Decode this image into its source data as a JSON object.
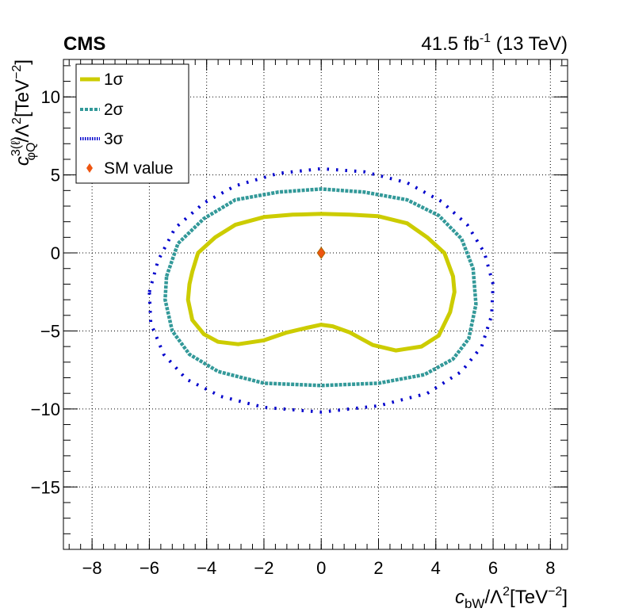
{
  "header": {
    "experiment": "CMS",
    "lumi_value": "41.5 fb",
    "lumi_exp": "-1",
    "lumi_energy": " (13 TeV)"
  },
  "axes": {
    "x_main": "c",
    "x_sub": "bW",
    "x_rest": "/Λ",
    "x_pow": "2",
    "x_unit": "[TeV",
    "x_unit_pow": "−2",
    "x_close": "]",
    "y_main": "c",
    "y_sup": "3(ℓ)",
    "y_sub": "φQ",
    "y_rest": "/Λ",
    "y_pow": "2",
    "y_unit": "[TeV",
    "y_unit_pow": "−2",
    "y_close": "]"
  },
  "legend": {
    "placement": "top-left",
    "entries": [
      {
        "label": "1σ",
        "color": "#cccc00",
        "style": "solid"
      },
      {
        "label": "2σ",
        "color": "#339999",
        "style": "dashed"
      },
      {
        "label": "3σ",
        "color": "#0000cc",
        "style": "dotted"
      },
      {
        "label": "SM value",
        "color": "#ee5511",
        "style": "marker"
      }
    ]
  },
  "chart_data": {
    "type": "scatter",
    "title": "",
    "xlabel": "c_bW/Λ^2[TeV^-2]",
    "ylabel": "c_φQ^3(ℓ)/Λ^2[TeV^-2]",
    "xlim": [
      -9,
      8.6
    ],
    "ylim": [
      -19,
      12.4
    ],
    "x_ticks": [
      -8,
      -6,
      -4,
      -2,
      0,
      2,
      4,
      6,
      8
    ],
    "y_ticks": [
      -15,
      -10,
      -5,
      0,
      5,
      10
    ],
    "x_tick_labels": [
      "−8",
      "−6",
      "−4",
      "−2",
      "0",
      "2",
      "4",
      "6",
      "8"
    ],
    "y_tick_labels": [
      "−15",
      "−10",
      "−5",
      "0",
      "5",
      "10"
    ],
    "grid": true,
    "series": [
      {
        "name": "1σ",
        "color": "#cccc00",
        "points": [
          [
            -4.5,
            -1.2
          ],
          [
            -4.3,
            0.0
          ],
          [
            -3.7,
            1.0
          ],
          [
            -3.0,
            1.8
          ],
          [
            -2.0,
            2.3
          ],
          [
            -1.0,
            2.45
          ],
          [
            0.0,
            2.5
          ],
          [
            1.0,
            2.45
          ],
          [
            2.0,
            2.35
          ],
          [
            3.0,
            1.9
          ],
          [
            3.7,
            1.0
          ],
          [
            4.3,
            0.0
          ],
          [
            4.6,
            -1.5
          ],
          [
            4.65,
            -2.5
          ],
          [
            4.5,
            -3.8
          ],
          [
            4.1,
            -5.3
          ],
          [
            3.5,
            -6.0
          ],
          [
            2.6,
            -6.25
          ],
          [
            1.8,
            -5.9
          ],
          [
            1.0,
            -5.1
          ],
          [
            0.4,
            -4.7
          ],
          [
            0.0,
            -4.6
          ],
          [
            -0.5,
            -4.8
          ],
          [
            -1.2,
            -5.1
          ],
          [
            -2.0,
            -5.6
          ],
          [
            -2.9,
            -5.85
          ],
          [
            -3.6,
            -5.7
          ],
          [
            -4.1,
            -5.2
          ],
          [
            -4.5,
            -4.3
          ],
          [
            -4.65,
            -3.0
          ],
          [
            -4.6,
            -2.0
          ]
        ]
      },
      {
        "name": "2σ",
        "color": "#339999",
        "points": [
          [
            -5.4,
            -1.5
          ],
          [
            -5.0,
            0.6
          ],
          [
            -4.1,
            2.2
          ],
          [
            -3.0,
            3.4
          ],
          [
            -1.5,
            3.9
          ],
          [
            0.0,
            4.1
          ],
          [
            1.5,
            3.9
          ],
          [
            3.0,
            3.4
          ],
          [
            4.1,
            2.4
          ],
          [
            4.9,
            0.9
          ],
          [
            5.3,
            -1.0
          ],
          [
            5.4,
            -3.3
          ],
          [
            5.15,
            -5.5
          ],
          [
            4.6,
            -6.8
          ],
          [
            3.6,
            -7.8
          ],
          [
            2.0,
            -8.35
          ],
          [
            0.0,
            -8.5
          ],
          [
            -2.0,
            -8.35
          ],
          [
            -3.6,
            -7.6
          ],
          [
            -4.6,
            -6.5
          ],
          [
            -5.2,
            -5.0
          ],
          [
            -5.45,
            -3.0
          ]
        ]
      },
      {
        "name": "3σ",
        "color": "#0000cc",
        "points": [
          [
            -6.0,
            -2.5
          ],
          [
            -5.7,
            -0.5
          ],
          [
            -5.1,
            1.6
          ],
          [
            -4.1,
            3.2
          ],
          [
            -3.0,
            4.3
          ],
          [
            -1.5,
            5.1
          ],
          [
            0.0,
            5.4
          ],
          [
            1.5,
            5.2
          ],
          [
            3.0,
            4.5
          ],
          [
            4.2,
            3.3
          ],
          [
            5.1,
            1.8
          ],
          [
            5.7,
            0.0
          ],
          [
            6.0,
            -2.0
          ],
          [
            5.95,
            -4.0
          ],
          [
            5.6,
            -6.0
          ],
          [
            4.9,
            -7.6
          ],
          [
            3.7,
            -9.0
          ],
          [
            2.0,
            -9.8
          ],
          [
            0.0,
            -10.2
          ],
          [
            -2.0,
            -9.9
          ],
          [
            -3.5,
            -9.2
          ],
          [
            -4.7,
            -8.1
          ],
          [
            -5.5,
            -6.5
          ],
          [
            -5.95,
            -4.5
          ]
        ]
      }
    ],
    "sm_value": {
      "name": "SM value",
      "x": 0,
      "y": 0
    }
  }
}
